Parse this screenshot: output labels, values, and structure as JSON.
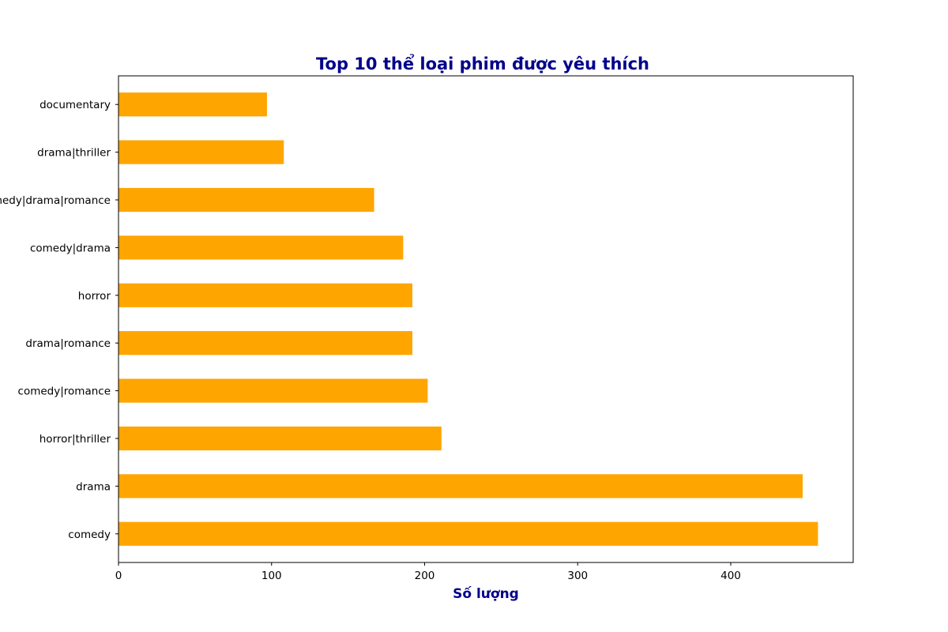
{
  "chart_data": {
    "type": "bar",
    "orientation": "horizontal",
    "title": "Top 10 thể loại phim được yêu thích",
    "xlabel": "Số lượng",
    "ylabel": "",
    "categories": [
      "comedy",
      "drama",
      "horror|thriller",
      "comedy|romance",
      "drama|romance",
      "horror",
      "comedy|drama",
      "comedy|drama|romance",
      "drama|thriller",
      "documentary"
    ],
    "values": [
      457,
      447,
      211,
      202,
      192,
      192,
      186,
      167,
      108,
      97
    ],
    "xlim": [
      0,
      480
    ],
    "xticks": [
      0,
      100,
      200,
      300,
      400
    ],
    "grid": false,
    "legend": "none",
    "bar_color": "#ffa500",
    "title_color": "#00008b"
  }
}
